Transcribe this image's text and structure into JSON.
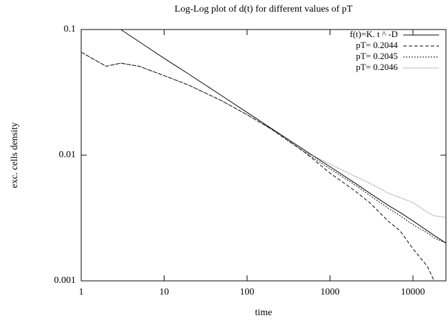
{
  "chart_data": {
    "type": "line",
    "title": "Log-Log plot of d(t) for different values of pT",
    "x_label": "time",
    "y_label": "exc. cells density",
    "xscale": "log",
    "yscale": "log",
    "xlim": [
      1,
      25000
    ],
    "ylim": [
      0.001,
      0.1
    ],
    "xticks": [
      1,
      10,
      100,
      1000,
      10000
    ],
    "yticks": [
      0.001,
      0.01,
      0.1
    ],
    "legend": "upper right",
    "x": [
      1,
      2,
      3,
      5,
      10,
      20,
      50,
      100,
      200,
      500,
      1000,
      2000,
      3000,
      5000,
      7000,
      10000,
      15000,
      18000,
      25000
    ],
    "series": [
      {
        "name": "f(t)=K. t ^ -D",
        "color": "#000000",
        "dash": "none",
        "values": [
          null,
          null,
          0.1,
          0.08,
          0.059,
          0.044,
          0.0296,
          0.0219,
          0.0162,
          0.0109,
          0.0081,
          0.006,
          0.005,
          0.004,
          0.0035,
          0.003,
          0.0025,
          0.0023,
          0.002
        ]
      },
      {
        "name": "pT= 0.2044",
        "color": "#000000",
        "dash": "5,3",
        "values": [
          0.066,
          0.051,
          0.054,
          0.051,
          0.043,
          0.036,
          0.027,
          0.021,
          0.016,
          0.0105,
          0.0072,
          0.0052,
          0.0042,
          0.003,
          0.0025,
          0.0018,
          0.0013,
          0.001,
          null
        ]
      },
      {
        "name": "pT= 0.2045",
        "color": "#000000",
        "dash": "2,2",
        "values": [
          0.066,
          0.051,
          0.054,
          0.051,
          0.043,
          0.036,
          0.027,
          0.021,
          0.016,
          0.0105,
          0.0078,
          0.0058,
          0.0048,
          0.0038,
          0.0033,
          0.0028,
          0.0024,
          0.0022,
          0.002
        ]
      },
      {
        "name": "pT= 0.2046",
        "color": "#555555",
        "dash": "1,1.5",
        "values": [
          0.066,
          0.051,
          0.054,
          0.051,
          0.043,
          0.036,
          0.027,
          0.021,
          0.016,
          0.0106,
          0.0085,
          0.0068,
          0.006,
          0.005,
          0.0046,
          0.0042,
          0.0035,
          0.0033,
          0.0032
        ]
      }
    ]
  }
}
